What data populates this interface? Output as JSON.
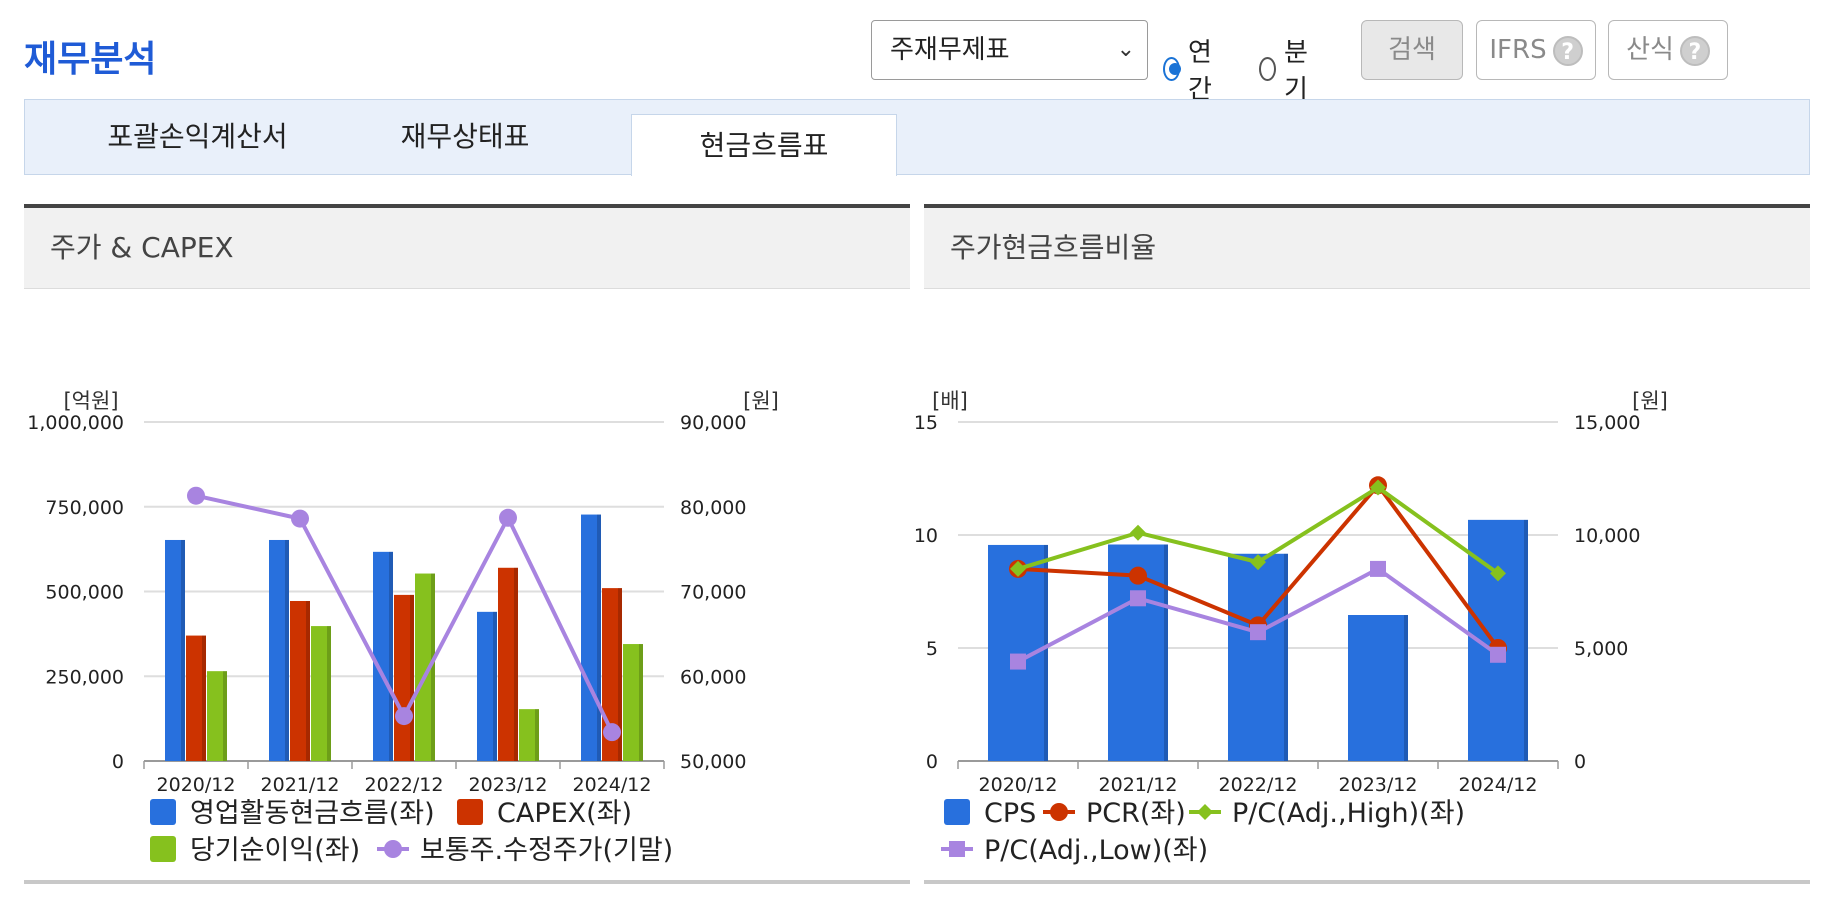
{
  "page": {
    "title": "재무분석"
  },
  "controls": {
    "select_value": "주재무제표",
    "radio_annual": "연간",
    "radio_quarter": "분기",
    "search_label": "검색",
    "ifrs_label": "IFRS",
    "formula_label": "산식",
    "help_icon": "question-circle-icon"
  },
  "tabs": [
    "포괄손익계산서",
    "재무상태표",
    "현금흐름표"
  ],
  "active_tab": 2,
  "colors": {
    "title": "#1f5bd6",
    "blue": "#2870dd",
    "red": "#cc3300",
    "green": "#86c11e",
    "purple": "#a884e0"
  },
  "chart_data": [
    {
      "type": "bar+line",
      "title": "주가 & CAPEX",
      "left_unit": "[억원]",
      "right_unit": "[원]",
      "categories": [
        "2020/12",
        "2021/12",
        "2022/12",
        "2023/12",
        "2024/12"
      ],
      "y_left_ticks": [
        "1,000,000",
        "750,000",
        "500,000",
        "250,000",
        "0"
      ],
      "y_right_ticks": [
        "90,000",
        "80,000",
        "70,000",
        "60,000",
        "50,000"
      ],
      "ylim_left": [
        0,
        1000000
      ],
      "ylim_right": [
        50000,
        90000
      ],
      "grid": true,
      "legend_position": "bottom",
      "bar_series": [
        {
          "name": "영업활동현금흐름(좌)",
          "color": "#2870dd",
          "values": [
            652000,
            652000,
            617000,
            440000,
            727000
          ]
        },
        {
          "name": "CAPEX(좌)",
          "color": "#cc3300",
          "values": [
            370000,
            472000,
            490000,
            570000,
            510000
          ]
        },
        {
          "name": "당기순이익(좌)",
          "color": "#86c11e",
          "values": [
            265000,
            398000,
            553000,
            153000,
            345000
          ]
        }
      ],
      "line_series": [
        {
          "name": "보통주.수정주가(기말)",
          "color": "#a884e0",
          "marker": "circle",
          "axis": "right",
          "values": [
            81300,
            78600,
            55300,
            78700,
            53400
          ]
        }
      ],
      "legend": [
        {
          "name": "영업활동현금흐름(좌)",
          "kind": "bar",
          "color": "#2870dd"
        },
        {
          "name": "CAPEX(좌)",
          "kind": "bar",
          "color": "#cc3300"
        },
        {
          "name": "당기순이익(좌)",
          "kind": "bar",
          "color": "#86c11e"
        },
        {
          "name": "보통주.수정주가(기말)",
          "kind": "circle",
          "color": "#a884e0"
        }
      ]
    },
    {
      "type": "bar+line",
      "title": "주가현금흐름비율",
      "left_unit": "[배]",
      "right_unit": "[원]",
      "categories": [
        "2020/12",
        "2021/12",
        "2022/12",
        "2023/12",
        "2024/12"
      ],
      "y_left_ticks": [
        "15",
        "10",
        "5",
        "0"
      ],
      "y_right_ticks": [
        "15,000",
        "10,000",
        "5,000",
        "0"
      ],
      "ylim_left": [
        0,
        15
      ],
      "ylim_right": [
        0,
        15000
      ],
      "grid": true,
      "legend_position": "bottom",
      "bar_series": [
        {
          "name": "CPS",
          "color": "#2870dd",
          "axis": "right",
          "values": [
            9560,
            9580,
            9170,
            6460,
            10670
          ]
        }
      ],
      "line_series": [
        {
          "name": "PCR(좌)",
          "color": "#cc3300",
          "marker": "circle",
          "axis": "left",
          "values": [
            8.5,
            8.2,
            6.0,
            12.2,
            5.0
          ]
        },
        {
          "name": "P/C(Adj.,High)(좌)",
          "color": "#86c11e",
          "marker": "diamond",
          "axis": "left",
          "values": [
            8.5,
            10.1,
            8.8,
            12.1,
            8.3
          ]
        },
        {
          "name": "P/C(Adj.,Low)(좌)",
          "color": "#a884e0",
          "marker": "square",
          "axis": "left",
          "values": [
            4.4,
            7.2,
            5.7,
            8.5,
            4.7
          ]
        }
      ],
      "legend": [
        {
          "name": "CPS",
          "kind": "bar",
          "color": "#2870dd"
        },
        {
          "name": "PCR(좌)",
          "kind": "circle",
          "color": "#cc3300"
        },
        {
          "name": "P/C(Adj.,High)(좌)",
          "kind": "diamond",
          "color": "#86c11e"
        },
        {
          "name": "P/C(Adj.,Low)(좌)",
          "kind": "square",
          "color": "#a884e0"
        }
      ]
    }
  ]
}
